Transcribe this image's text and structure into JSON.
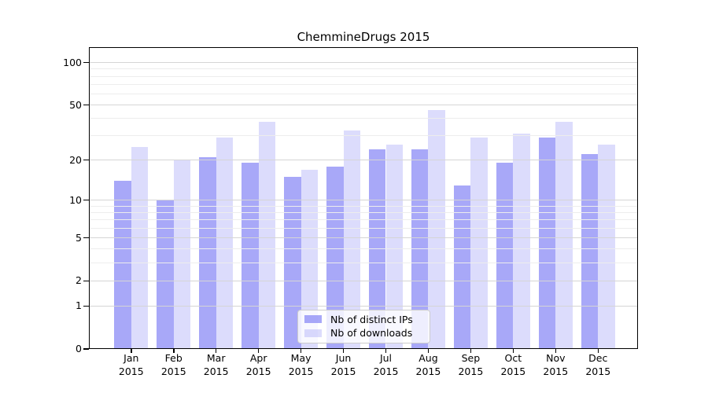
{
  "title": "ChemmineDrugs 2015",
  "chart_data": {
    "type": "bar",
    "title": "ChemmineDrugs 2015",
    "categories": [
      "Jan 2015",
      "Feb 2015",
      "Mar 2015",
      "Apr 2015",
      "May 2015",
      "Jun 2015",
      "Jul 2015",
      "Aug 2015",
      "Sep 2015",
      "Oct 2015",
      "Nov 2015",
      "Dec 2015"
    ],
    "series": [
      {
        "name": "Nb of distinct IPs",
        "values": [
          14,
          10,
          21,
          19,
          15,
          18,
          24,
          24,
          13,
          19,
          29,
          22
        ],
        "color": "rgba(127,127,245,0.68)"
      },
      {
        "name": "Nb of downloads",
        "values": [
          25,
          20,
          29,
          38,
          17,
          33,
          26,
          46,
          29,
          31,
          38,
          26
        ],
        "color": "rgba(127,127,245,0.27)"
      }
    ],
    "xlabel": "",
    "ylabel": "",
    "yscale": "log(1+x)",
    "y_ticks": [
      0,
      1,
      2,
      5,
      10,
      20,
      50,
      100
    ],
    "y_minor_gridlines": [
      3,
      4,
      6,
      7,
      8,
      9,
      30,
      40,
      60,
      70,
      80,
      90
    ],
    "ylim": [
      0,
      128
    ],
    "grid": true,
    "legend_position": "lower center",
    "colors": {
      "axis": "#000000",
      "major_grid": "#d5d5d5",
      "minor_grid": "#ededed",
      "legend_border": "#cccccc",
      "legend_background": "rgba(255,255,255,0.8)"
    }
  }
}
